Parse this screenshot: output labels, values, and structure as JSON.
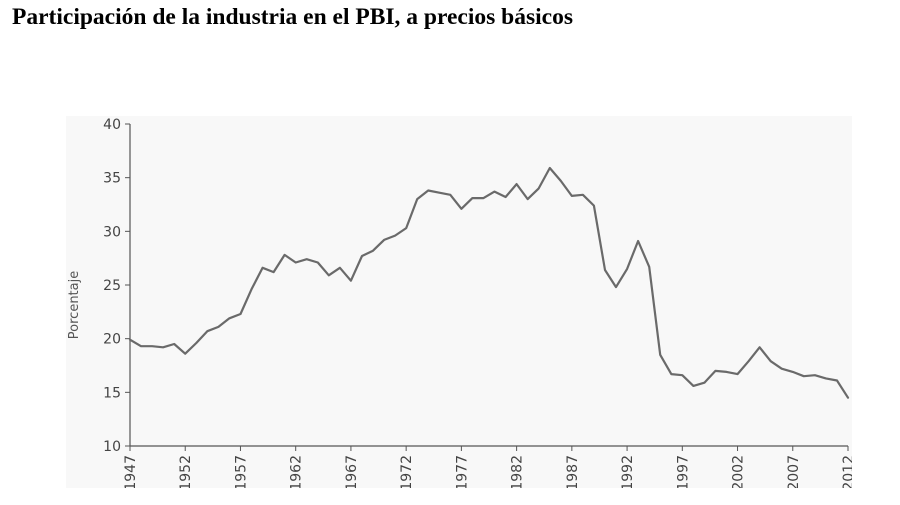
{
  "title": "Participación de la industria en el PBI, a precios básicos",
  "chart_data": {
    "type": "line",
    "title": "Participación de la industria en el PBI, a precios básicos",
    "xlabel": "",
    "ylabel": "Porcentaje",
    "xlim": [
      1947,
      2012
    ],
    "ylim": [
      10,
      40
    ],
    "x_ticks": [
      1947,
      1952,
      1957,
      1962,
      1967,
      1972,
      1977,
      1982,
      1987,
      1992,
      1997,
      2002,
      2007,
      2012
    ],
    "y_ticks": [
      10,
      15,
      20,
      25,
      30,
      35,
      40
    ],
    "grid": false,
    "legend": "none",
    "line_color": "#6a6a6a",
    "series": [
      {
        "x": [
          1947,
          1948,
          1949,
          1950,
          1951,
          1952,
          1953,
          1954,
          1955,
          1956,
          1957,
          1958,
          1959,
          1960,
          1961,
          1962,
          1963,
          1964,
          1965,
          1966,
          1967,
          1968,
          1969,
          1970,
          1971,
          1972,
          1973,
          1974,
          1975,
          1976,
          1977,
          1978,
          1979,
          1980,
          1981,
          1982,
          1983,
          1984,
          1985,
          1986,
          1987,
          1988,
          1989,
          1990,
          1991,
          1992,
          1993,
          1994,
          1995,
          1996,
          1997,
          1998,
          1999,
          2000,
          2001,
          2002,
          2003,
          2004,
          2005,
          2006,
          2007,
          2008,
          2009,
          2010,
          2011,
          2012
        ],
        "values": [
          19.9,
          19.3,
          19.3,
          19.2,
          19.5,
          18.6,
          19.6,
          20.7,
          21.1,
          21.9,
          22.3,
          24.6,
          26.6,
          26.2,
          27.8,
          27.1,
          27.4,
          27.1,
          25.9,
          26.6,
          25.4,
          27.7,
          28.2,
          29.2,
          29.6,
          30.3,
          33.0,
          33.8,
          33.6,
          33.4,
          32.1,
          33.1,
          33.1,
          33.7,
          33.2,
          34.4,
          33.0,
          34.0,
          35.9,
          34.7,
          33.3,
          33.4,
          32.4,
          26.4,
          24.8,
          26.5,
          29.1,
          26.7,
          18.5,
          16.7,
          16.6,
          15.6,
          15.9,
          17.0,
          16.9,
          16.7,
          17.9,
          19.2,
          17.9,
          17.2,
          16.9,
          16.5,
          16.6,
          16.3,
          16.1,
          14.5
        ]
      }
    ]
  }
}
